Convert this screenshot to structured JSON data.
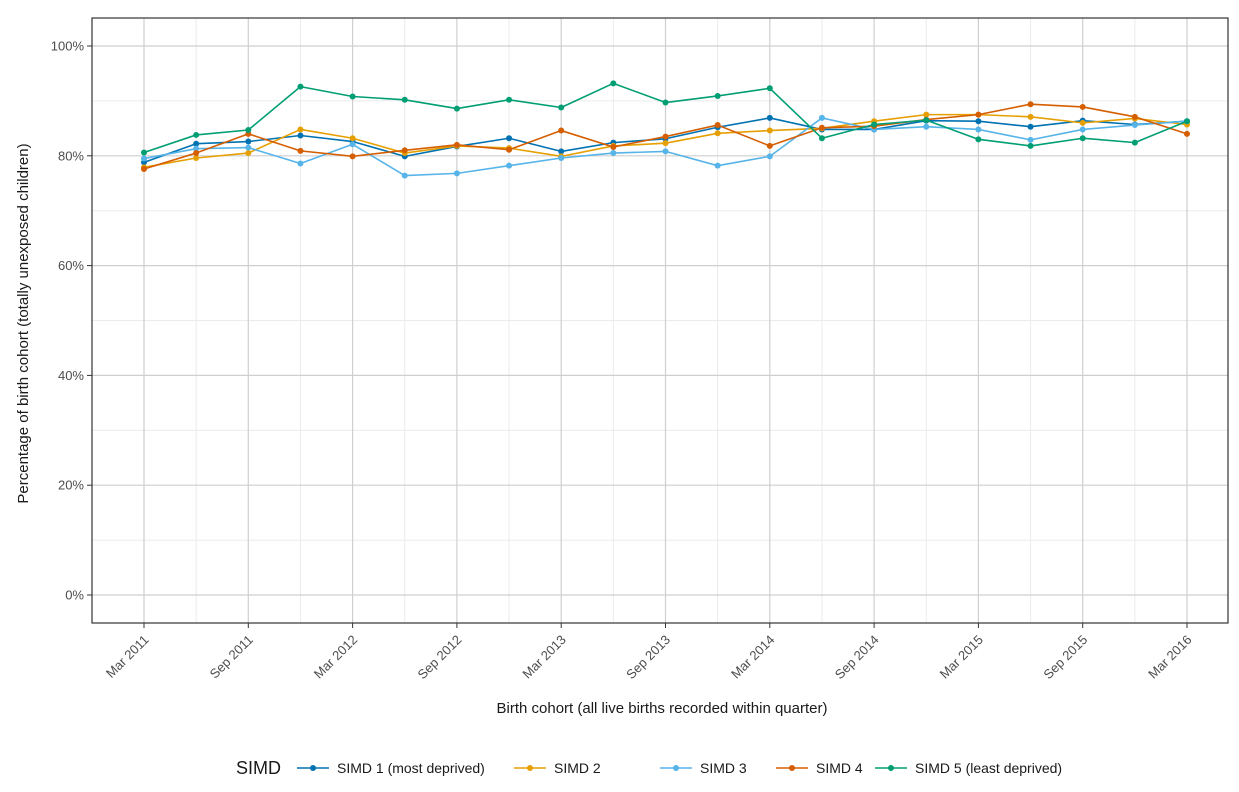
{
  "chart_data": {
    "type": "line",
    "xlabel": "Birth cohort (all live births recorded within quarter)",
    "ylabel": "Percentage of birth cohort (totally unexposed children)",
    "x": [
      "Mar 2011",
      "Jun 2011",
      "Sep 2011",
      "Dec 2011",
      "Mar 2012",
      "Jun 2012",
      "Sep 2012",
      "Dec 2012",
      "Mar 2013",
      "Jun 2013",
      "Sep 2013",
      "Dec 2013",
      "Mar 2014",
      "Jun 2014",
      "Sep 2014",
      "Dec 2014",
      "Mar 2015",
      "Jun 2015",
      "Sep 2015",
      "Dec 2015",
      "Mar 2016"
    ],
    "x_tick_labels": [
      "Mar 2011",
      "Sep 2011",
      "Mar 2012",
      "Sep 2012",
      "Mar 2013",
      "Sep 2013",
      "Mar 2014",
      "Sep 2014",
      "Mar 2015",
      "Sep 2015",
      "Mar 2016"
    ],
    "ylim": [
      0,
      100
    ],
    "y_ticks": [
      0,
      20,
      40,
      60,
      80,
      100
    ],
    "y_tick_labels": [
      "0%",
      "20%",
      "40%",
      "60%",
      "80%",
      "100%"
    ],
    "grid": true,
    "legend_title": "SIMD",
    "legend_position": "bottom",
    "series": [
      {
        "name": "SIMD 1 (most deprived)",
        "color": "#0072B2",
        "values": [
          78.8,
          82.2,
          82.6,
          83.7,
          82.6,
          79.9,
          81.7,
          83.2,
          80.8,
          82.4,
          83.1,
          85.2,
          86.9,
          84.8,
          84.8,
          86.4,
          86.3,
          85.3,
          86.4,
          85.7,
          86.3
        ]
      },
      {
        "name": "SIMD 2",
        "color": "#E69F00",
        "values": [
          77.9,
          79.6,
          80.5,
          84.8,
          83.2,
          80.5,
          81.8,
          81.4,
          79.9,
          81.8,
          82.3,
          84.1,
          84.6,
          85.0,
          86.3,
          87.5,
          87.5,
          87.1,
          86.0,
          86.8,
          85.7
        ]
      },
      {
        "name": "SIMD 3",
        "color": "#56B4E9",
        "values": [
          79.5,
          81.3,
          81.5,
          78.6,
          82.1,
          76.4,
          76.8,
          78.2,
          79.6,
          80.5,
          80.8,
          78.2,
          79.9,
          86.9,
          84.8,
          85.3,
          84.8,
          82.9,
          84.8,
          85.6,
          86.3
        ]
      },
      {
        "name": "SIMD 4",
        "color": "#D55E00",
        "values": [
          77.6,
          80.5,
          84.0,
          80.9,
          79.9,
          81.0,
          82.0,
          81.1,
          84.6,
          81.6,
          83.5,
          85.6,
          81.8,
          85.1,
          85.4,
          86.6,
          87.5,
          89.4,
          88.9,
          87.1,
          84.0
        ]
      },
      {
        "name": "SIMD 5 (least deprived)",
        "color": "#009E73",
        "values": [
          80.6,
          83.8,
          84.7,
          92.6,
          90.8,
          90.2,
          88.6,
          90.2,
          88.8,
          93.2,
          89.7,
          90.9,
          92.3,
          83.2,
          85.7,
          86.5,
          83.0,
          81.8,
          83.2,
          82.4,
          86.3
        ]
      }
    ]
  }
}
